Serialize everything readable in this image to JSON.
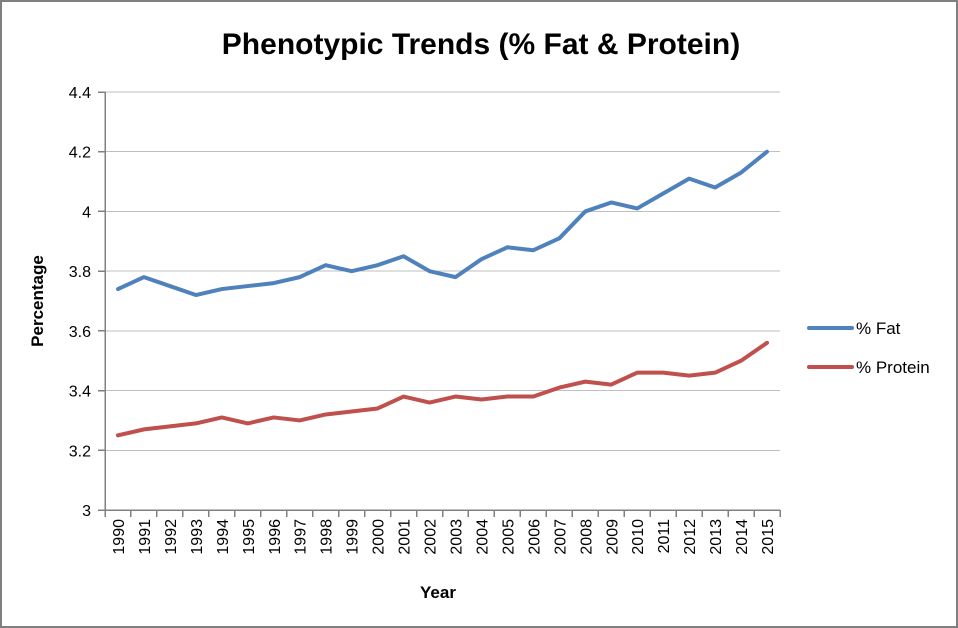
{
  "chart_data": {
    "type": "line",
    "title": "Phenotypic Trends (% Fat & Protein)",
    "xlabel": "Year",
    "ylabel": "Percentage",
    "ylim": [
      3,
      4.4
    ],
    "y_tick_step": 0.2,
    "y_tick_labels": [
      "3",
      "3.2",
      "3.4",
      "3.6",
      "3.8",
      "4",
      "4.2",
      "4.4"
    ],
    "grid": true,
    "legend_position": "right",
    "x": [
      1990,
      1991,
      1992,
      1993,
      1994,
      1995,
      1996,
      1997,
      1998,
      1999,
      2000,
      2001,
      2002,
      2003,
      2004,
      2005,
      2006,
      2007,
      2008,
      2009,
      2010,
      2011,
      2012,
      2013,
      2014,
      2015
    ],
    "series": [
      {
        "name": "% Fat",
        "color": "#4F81BD",
        "values": [
          3.74,
          3.78,
          3.75,
          3.72,
          3.74,
          3.75,
          3.76,
          3.78,
          3.82,
          3.8,
          3.82,
          3.85,
          3.8,
          3.78,
          3.84,
          3.88,
          3.87,
          3.91,
          4.0,
          4.03,
          4.01,
          4.06,
          4.11,
          4.08,
          4.13,
          4.2
        ]
      },
      {
        "name": "% Protein",
        "color": "#C0504D",
        "values": [
          3.25,
          3.27,
          3.28,
          3.29,
          3.31,
          3.29,
          3.31,
          3.3,
          3.32,
          3.33,
          3.34,
          3.38,
          3.36,
          3.38,
          3.37,
          3.38,
          3.38,
          3.41,
          3.43,
          3.42,
          3.46,
          3.46,
          3.45,
          3.46,
          3.5,
          3.56
        ]
      }
    ],
    "colors": {
      "grid": "#BFBFBF",
      "axis": "#808080",
      "frame_border": "#7F7F7F",
      "text": "#000000"
    }
  }
}
